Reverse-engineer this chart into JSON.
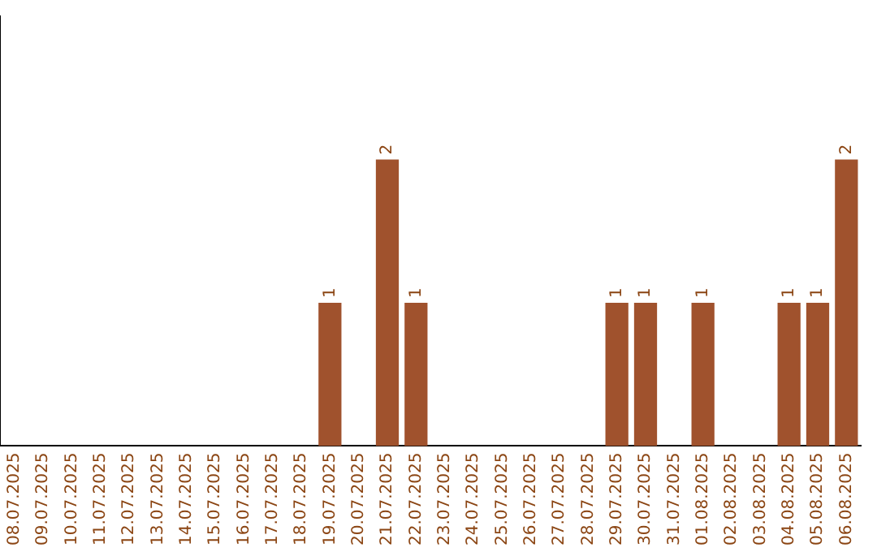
{
  "chart_data": {
    "type": "bar",
    "categories": [
      "08.07.2025",
      "09.07.2025",
      "10.07.2025",
      "11.07.2025",
      "12.07.2025",
      "13.07.2025",
      "14.07.2025",
      "15.07.2025",
      "16.07.2025",
      "17.07.2025",
      "18.07.2025",
      "19.07.2025",
      "20.07.2025",
      "21.07.2025",
      "22.07.2025",
      "23.07.2025",
      "24.07.2025",
      "25.07.2025",
      "26.07.2025",
      "27.07.2025",
      "28.07.2025",
      "29.07.2025",
      "30.07.2025",
      "31.07.2025",
      "01.08.2025",
      "02.08.2025",
      "03.08.2025",
      "04.08.2025",
      "05.08.2025",
      "06.08.2025"
    ],
    "values": [
      0,
      0,
      0,
      0,
      0,
      0,
      0,
      0,
      0,
      0,
      0,
      1,
      0,
      2,
      1,
      0,
      0,
      0,
      0,
      0,
      0,
      1,
      1,
      0,
      1,
      0,
      0,
      1,
      1,
      2
    ],
    "value_labels": [
      null,
      null,
      null,
      null,
      null,
      null,
      null,
      null,
      null,
      null,
      null,
      "1",
      null,
      "2",
      "1",
      null,
      null,
      null,
      null,
      null,
      null,
      "1",
      "1",
      null,
      "1",
      null,
      null,
      "1",
      "1",
      "2"
    ],
    "color": "#a0522d",
    "grid": false,
    "legend": false,
    "tick_labels": "x"
  }
}
